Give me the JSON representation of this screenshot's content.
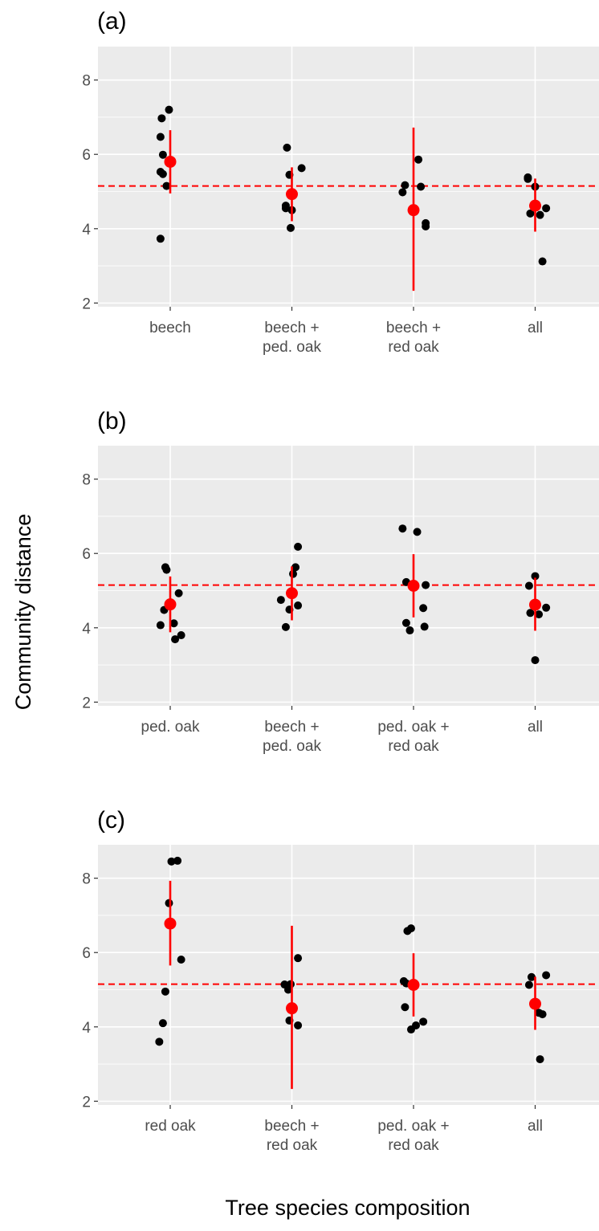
{
  "chart_data": {
    "type": "scatter",
    "description_elements": "jittered points per group with group mean (red point) and error bar; dashed red reference line",
    "ylabel": "Community distance",
    "xlabel": "Tree species composition",
    "ylim": [
      1.9,
      8.9
    ],
    "yticks": [
      2,
      4,
      6,
      8
    ],
    "grid": true,
    "reference_line": {
      "y": 5.15,
      "color": "#ff0000",
      "style": "dashed"
    },
    "colors": {
      "points": "#000000",
      "mean": "#ff0000",
      "panel_bg": "#ebebeb",
      "grid": "#ffffff"
    },
    "panels": [
      {
        "tag": "(a)",
        "groups": [
          {
            "label": [
              "beech"
            ],
            "mean": 5.8,
            "ymin": 4.95,
            "ymax": 6.65,
            "points": [
              [
                -0.08,
                3.73
              ],
              [
                -0.08,
                5.53
              ],
              [
                -0.06,
                5.47
              ],
              [
                -0.08,
                6.47
              ],
              [
                -0.06,
                5.99
              ],
              [
                -0.07,
                6.97
              ],
              [
                -0.03,
                5.15
              ],
              [
                -0.01,
                7.2
              ]
            ]
          },
          {
            "label": [
              "beech +",
              "ped. oak"
            ],
            "mean": 4.93,
            "ymin": 4.2,
            "ymax": 5.65,
            "points": [
              [
                -0.04,
                6.18
              ],
              [
                0.08,
                5.63
              ],
              [
                -0.02,
                5.45
              ],
              [
                -0.05,
                4.55
              ],
              [
                -0.05,
                4.62
              ],
              [
                0.0,
                4.5
              ],
              [
                -0.01,
                4.02
              ]
            ]
          },
          {
            "label": [
              "beech +",
              "red oak"
            ],
            "mean": 4.5,
            "ymin": 2.33,
            "ymax": 6.72,
            "points": [
              [
                0.04,
                5.86
              ],
              [
                -0.07,
                5.17
              ],
              [
                -0.09,
                4.98
              ],
              [
                0.06,
                5.13
              ],
              [
                0.1,
                4.15
              ],
              [
                0.1,
                4.06
              ]
            ]
          },
          {
            "label": [
              "all"
            ],
            "mean": 4.62,
            "ymin": 3.92,
            "ymax": 5.35,
            "points": [
              [
                -0.06,
                5.38
              ],
              [
                -0.06,
                5.34
              ],
              [
                0.0,
                5.13
              ],
              [
                -0.04,
                4.41
              ],
              [
                0.04,
                4.37
              ],
              [
                0.09,
                4.55
              ],
              [
                0.06,
                3.12
              ]
            ]
          }
        ]
      },
      {
        "tag": "(b)",
        "groups": [
          {
            "label": [
              "ped. oak"
            ],
            "mean": 4.63,
            "ymin": 3.88,
            "ymax": 5.38,
            "points": [
              [
                -0.04,
                5.63
              ],
              [
                -0.03,
                5.56
              ],
              [
                -0.05,
                4.48
              ],
              [
                0.07,
                4.93
              ],
              [
                -0.08,
                4.07
              ],
              [
                0.03,
                4.12
              ],
              [
                0.09,
                3.8
              ],
              [
                0.04,
                3.69
              ]
            ]
          },
          {
            "label": [
              "beech +",
              "ped. oak"
            ],
            "mean": 4.93,
            "ymin": 4.2,
            "ymax": 5.65,
            "points": [
              [
                0.05,
                6.18
              ],
              [
                0.03,
                5.63
              ],
              [
                0.01,
                5.45
              ],
              [
                -0.09,
                4.75
              ],
              [
                -0.05,
                4.02
              ],
              [
                0.05,
                4.6
              ],
              [
                -0.02,
                4.49
              ]
            ]
          },
          {
            "label": [
              "ped. oak +",
              "red oak"
            ],
            "mean": 5.13,
            "ymin": 4.28,
            "ymax": 5.98,
            "points": [
              [
                -0.09,
                6.67
              ],
              [
                0.03,
                6.58
              ],
              [
                -0.06,
                5.23
              ],
              [
                0.1,
                5.15
              ],
              [
                -0.06,
                4.13
              ],
              [
                -0.03,
                3.93
              ],
              [
                0.08,
                4.53
              ],
              [
                0.09,
                4.03
              ]
            ]
          },
          {
            "label": [
              "all"
            ],
            "mean": 4.62,
            "ymin": 3.92,
            "ymax": 5.35,
            "points": [
              [
                -0.05,
                5.13
              ],
              [
                0.0,
                5.39
              ],
              [
                -0.04,
                4.4
              ],
              [
                0.03,
                4.36
              ],
              [
                0.09,
                4.54
              ],
              [
                0.0,
                3.13
              ]
            ]
          }
        ]
      },
      {
        "tag": "(c)",
        "groups": [
          {
            "label": [
              "red oak"
            ],
            "mean": 6.78,
            "ymin": 5.65,
            "ymax": 7.93,
            "points": [
              [
                0.01,
                8.45
              ],
              [
                0.06,
                8.47
              ],
              [
                -0.01,
                7.33
              ],
              [
                0.09,
                5.81
              ],
              [
                -0.04,
                4.95
              ],
              [
                -0.06,
                4.1
              ],
              [
                -0.09,
                3.6
              ]
            ]
          },
          {
            "label": [
              "beech +",
              "red oak"
            ],
            "mean": 4.5,
            "ymin": 2.33,
            "ymax": 6.72,
            "points": [
              [
                0.05,
                5.85
              ],
              [
                -0.06,
                5.14
              ],
              [
                -0.03,
                5.0
              ],
              [
                -0.01,
                5.15
              ],
              [
                -0.02,
                4.17
              ],
              [
                0.05,
                4.04
              ]
            ]
          },
          {
            "label": [
              "ped. oak +",
              "red oak"
            ],
            "mean": 5.13,
            "ymin": 4.28,
            "ymax": 5.98,
            "points": [
              [
                -0.05,
                6.58
              ],
              [
                -0.02,
                6.65
              ],
              [
                -0.08,
                5.23
              ],
              [
                -0.06,
                5.17
              ],
              [
                -0.07,
                4.53
              ],
              [
                -0.02,
                3.93
              ],
              [
                0.02,
                4.04
              ],
              [
                0.08,
                4.14
              ]
            ]
          },
          {
            "label": [
              "all"
            ],
            "mean": 4.62,
            "ymin": 3.92,
            "ymax": 5.35,
            "points": [
              [
                -0.05,
                5.13
              ],
              [
                -0.03,
                5.34
              ],
              [
                0.09,
                5.39
              ],
              [
                0.03,
                4.38
              ],
              [
                0.06,
                4.34
              ],
              [
                0.04,
                3.13
              ]
            ]
          }
        ]
      }
    ]
  }
}
